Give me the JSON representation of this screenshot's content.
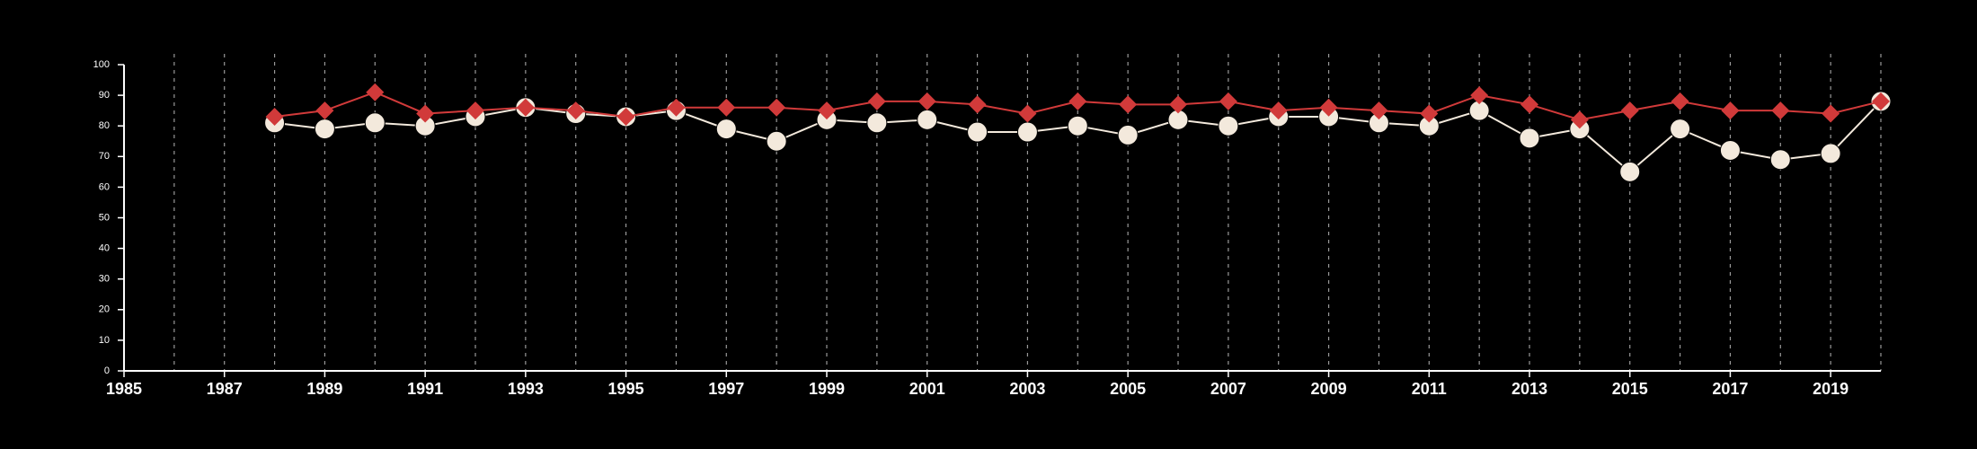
{
  "chart_data": {
    "type": "line",
    "title": "",
    "xlabel": "",
    "ylabel": "",
    "xlim": [
      1985,
      2020
    ],
    "ylim": [
      0,
      100
    ],
    "x_ticks": [
      1985,
      1987,
      1989,
      1991,
      1993,
      1995,
      1997,
      1999,
      2001,
      2003,
      2005,
      2007,
      2009,
      2011,
      2013,
      2015,
      2017,
      2019
    ],
    "x_tick_labels": [
      "1985",
      "1987",
      "1989",
      "1991",
      "1993",
      "1995",
      "1997",
      "1999",
      "2001",
      "2003",
      "2005",
      "2007",
      "2009",
      "2011",
      "2013",
      "2015",
      "2017",
      "2019"
    ],
    "y_ticks": [
      0,
      10,
      20,
      30,
      40,
      50,
      60,
      70,
      80,
      90,
      100
    ],
    "y_tick_labels": [
      "0",
      "10",
      "20",
      "30",
      "40",
      "50",
      "60",
      "70",
      "80",
      "90",
      "100"
    ],
    "vertical_grid": "dashed, every year",
    "legend": "none",
    "series": [
      {
        "marker": "diamond",
        "color": "#d13a3a",
        "x": [
          1988,
          1989,
          1990,
          1991,
          1992,
          1993,
          1994,
          1995,
          1996,
          1997,
          1998,
          1999,
          2000,
          2001,
          2002,
          2003,
          2004,
          2005,
          2006,
          2007,
          2008,
          2009,
          2010,
          2011,
          2012,
          2013,
          2014,
          2015,
          2016,
          2017,
          2018,
          2019,
          2020
        ],
        "values": [
          83,
          85,
          91,
          84,
          85,
          86,
          85,
          83,
          86,
          86,
          86,
          85,
          88,
          88,
          87,
          84,
          88,
          87,
          87,
          88,
          85,
          86,
          85,
          84,
          90,
          87,
          82,
          85,
          88,
          85,
          85,
          84,
          88
        ]
      },
      {
        "marker": "circle",
        "color": "#f3e9dc",
        "x": [
          1988,
          1989,
          1990,
          1991,
          1992,
          1993,
          1994,
          1995,
          1996,
          1997,
          1998,
          1999,
          2000,
          2001,
          2002,
          2003,
          2004,
          2005,
          2006,
          2007,
          2008,
          2009,
          2010,
          2011,
          2012,
          2013,
          2014,
          2015,
          2016,
          2017,
          2018,
          2019,
          2020
        ],
        "values": [
          81,
          79,
          81,
          80,
          83,
          86,
          84,
          83,
          85,
          79,
          75,
          82,
          81,
          82,
          78,
          78,
          80,
          77,
          82,
          80,
          83,
          83,
          81,
          80,
          85,
          76,
          79,
          65,
          79,
          72,
          69,
          71,
          88
        ]
      }
    ]
  }
}
